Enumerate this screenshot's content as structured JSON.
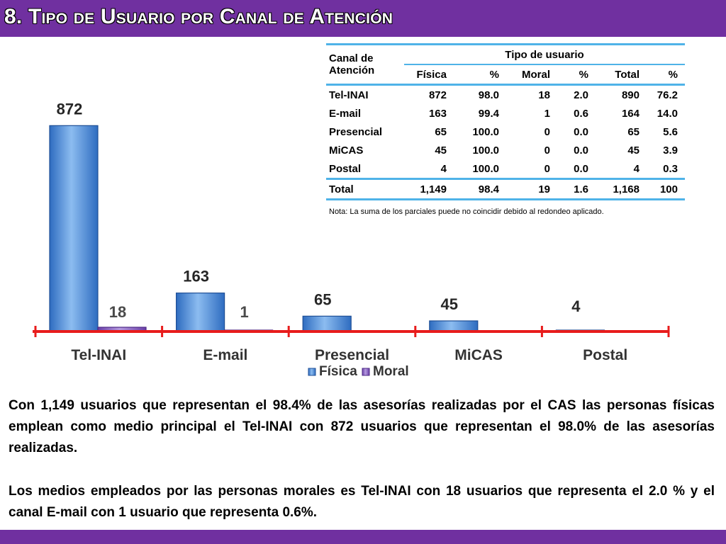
{
  "page": {
    "title": "8. Tipo de Usuario por Canal de Atención",
    "note": "Nota: La suma de los parciales puede no coincidir debido al redondeo aplicado.",
    "paragraph_1": "Con 1,149 usuarios que representan el 98.4% de las asesorías realizadas por el CAS las personas físicas emplean como medio principal el Tel-INAI con 872 usuarios que representan el 98.0% de las asesorías realizadas.",
    "paragraph_2": "Los medios empleados por las personas morales es Tel-INAI con 18 usuarios que representa el 2.0 % y el canal E-mail con 1 usuario que representa 0.6%."
  },
  "table": {
    "header_canal": "Canal de Atención",
    "header_group": "Tipo de usuario",
    "subheaders": [
      "Física",
      "%",
      "Moral",
      "%",
      "Total",
      "%"
    ],
    "rows": [
      {
        "canal": "Tel-INAI",
        "fisica": "872",
        "fisica_pct": "98.0",
        "moral": "18",
        "moral_pct": "2.0",
        "total": "890",
        "total_pct": "76.2"
      },
      {
        "canal": "E-mail",
        "fisica": "163",
        "fisica_pct": "99.4",
        "moral": "1",
        "moral_pct": "0.6",
        "total": "164",
        "total_pct": "14.0"
      },
      {
        "canal": "Presencial",
        "fisica": "65",
        "fisica_pct": "100.0",
        "moral": "0",
        "moral_pct": "0.0",
        "total": "65",
        "total_pct": "5.6"
      },
      {
        "canal": "MiCAS",
        "fisica": "45",
        "fisica_pct": "100.0",
        "moral": "0",
        "moral_pct": "0.0",
        "total": "45",
        "total_pct": "3.9"
      },
      {
        "canal": "Postal",
        "fisica": "4",
        "fisica_pct": "100.0",
        "moral": "0",
        "moral_pct": "0.0",
        "total": "4",
        "total_pct": "0.3"
      }
    ],
    "total_row": {
      "canal": "Total",
      "fisica": "1,149",
      "fisica_pct": "98.4",
      "moral": "19",
      "moral_pct": "1.6",
      "total": "1,168",
      "total_pct": "100"
    }
  },
  "chart_data": {
    "type": "bar",
    "categories": [
      "Tel-INAI",
      "E-mail",
      "Presencial",
      "MiCAS",
      "Postal"
    ],
    "series": [
      {
        "name": "Física",
        "values": [
          872,
          163,
          65,
          45,
          4
        ],
        "labels": [
          "872",
          "163",
          "65",
          "45",
          "4"
        ],
        "color": "#4f8fd9"
      },
      {
        "name": "Moral",
        "values": [
          18,
          1,
          0,
          0,
          0
        ],
        "labels": [
          "18",
          "1",
          "",
          "",
          ""
        ],
        "color": "#8a5cc4"
      }
    ],
    "ylim": [
      0,
      900
    ],
    "legend": "bottom",
    "axis_color": "#e81c1c",
    "label_color_fisica": "#262626",
    "label_color_moral": "#4a4a4a"
  }
}
